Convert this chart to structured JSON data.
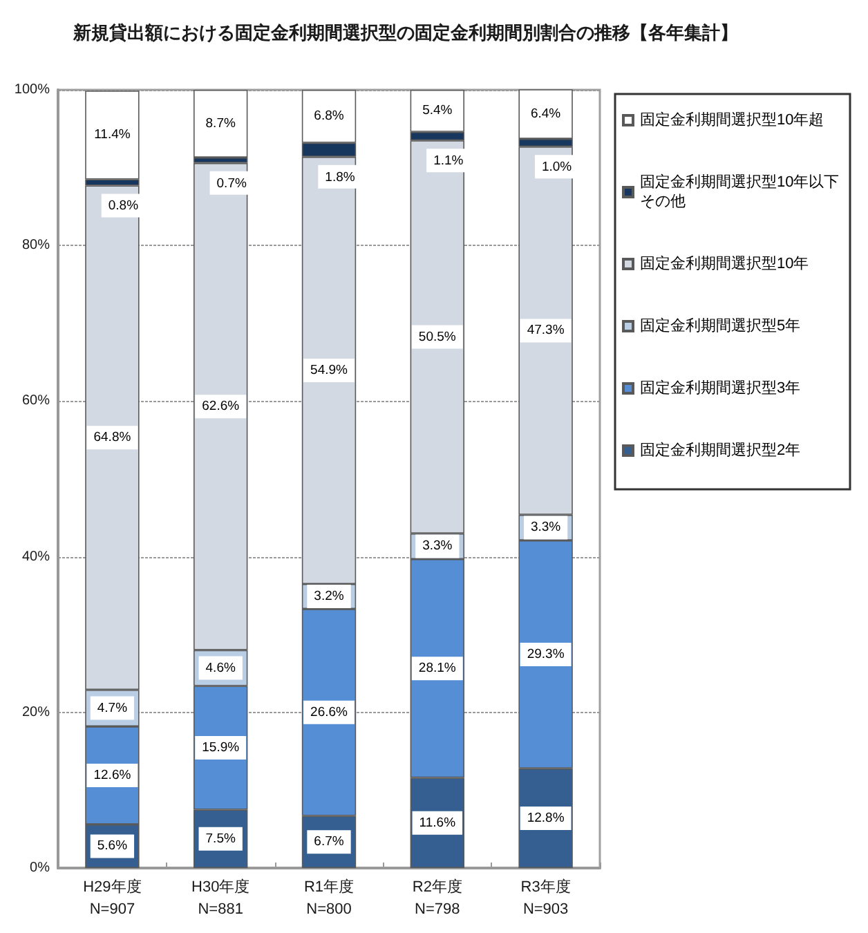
{
  "chart_data": {
    "type": "bar",
    "stacked": true,
    "title": "新規貸出額における固定金利期間選択型の固定金利期間別割合の推移【各年集計】",
    "categories": [
      "H29年度\nN=907",
      "H30年度\nN=881",
      "R1年度\nN=800",
      "R2年度\nN=798",
      "R3年度\nN=903"
    ],
    "series": [
      {
        "name": "固定金利期間選択型2年",
        "color": "#365f91",
        "values": [
          5.6,
          7.5,
          6.7,
          11.6,
          12.8
        ],
        "value_labels": [
          "5.6%",
          "7.5%",
          "6.7%",
          "11.6%",
          "12.8%"
        ]
      },
      {
        "name": "固定金利期間選択型3年",
        "color": "#558ed5",
        "values": [
          12.6,
          15.9,
          26.6,
          28.1,
          29.3
        ],
        "value_labels": [
          "12.6%",
          "15.9%",
          "26.6%",
          "28.1%",
          "29.3%"
        ]
      },
      {
        "name": "固定金利期間選択型5年",
        "color": "#b9cde5",
        "values": [
          4.7,
          4.6,
          3.2,
          3.3,
          3.3
        ],
        "value_labels": [
          "4.7%",
          "4.6%",
          "3.2%",
          "3.3%",
          "3.3%"
        ]
      },
      {
        "name": "固定金利期間選択型10年",
        "color": "#d3d9e3",
        "values": [
          64.8,
          62.6,
          54.9,
          50.5,
          47.3
        ],
        "value_labels": [
          "64.8%",
          "62.6%",
          "54.9%",
          "50.5%",
          "47.3%"
        ]
      },
      {
        "name": "固定金利期間選択型10年以下その他",
        "color": "#17375e",
        "values": [
          0.8,
          0.7,
          1.8,
          1.1,
          1.0
        ],
        "value_labels": [
          "0.8%",
          "0.7%",
          "1.8%",
          "1.1%",
          "1.0%"
        ]
      },
      {
        "name": "固定金利期間選択型10年超",
        "color": "#ffffff",
        "values": [
          11.4,
          8.7,
          6.8,
          5.4,
          6.4
        ],
        "value_labels": [
          "11.4%",
          "8.7%",
          "6.8%",
          "5.4%",
          "6.4%"
        ]
      }
    ],
    "ylim": [
      0,
      100
    ],
    "yticks": [
      {
        "value": 0,
        "label": "0%"
      },
      {
        "value": 20,
        "label": "20%"
      },
      {
        "value": 40,
        "label": "40%"
      },
      {
        "value": 60,
        "label": "60%"
      },
      {
        "value": 80,
        "label": "80%"
      },
      {
        "value": 100,
        "label": "100%"
      }
    ],
    "grid": "y",
    "legend": "right"
  }
}
